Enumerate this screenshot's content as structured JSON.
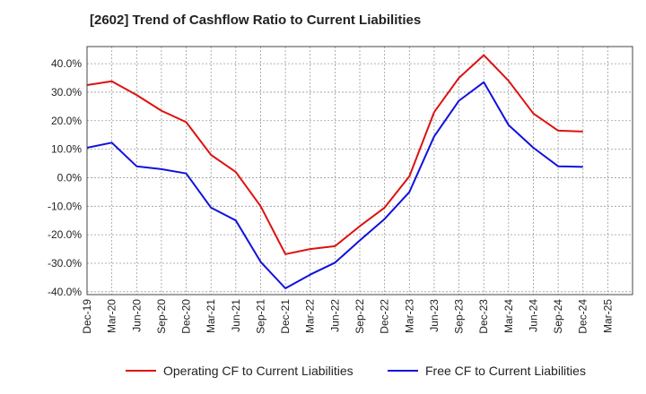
{
  "chart_data": {
    "type": "line",
    "title": "[2602]  Trend of Cashflow Ratio to Current Liabilities",
    "xlabel": "",
    "ylabel": "",
    "x": [
      "Dec-19",
      "Mar-20",
      "Jun-20",
      "Sep-20",
      "Dec-20",
      "Mar-21",
      "Jun-21",
      "Sep-21",
      "Dec-21",
      "Mar-22",
      "Jun-22",
      "Sep-22",
      "Dec-22",
      "Mar-23",
      "Jun-23",
      "Sep-23",
      "Dec-23",
      "Mar-24",
      "Jun-24",
      "Sep-24",
      "Dec-24",
      "Mar-25"
    ],
    "ylim": [
      -41,
      46
    ],
    "yticks": [
      40,
      30,
      20,
      10,
      0,
      -10,
      -20,
      -30,
      -40
    ],
    "ytick_labels": [
      "40.0%",
      "30.0%",
      "20.0%",
      "10.0%",
      "0.0%",
      "-10.0%",
      "-20.0%",
      "-30.0%",
      "-40.0%"
    ],
    "grid": true,
    "legend_position": "bottom",
    "series": [
      {
        "name": "Operating CF to Current Liabilities",
        "color": "#dd1111",
        "values": [
          32.5,
          33.8,
          29.0,
          23.5,
          19.5,
          8.0,
          2.0,
          -10.0,
          -26.8,
          -25.0,
          -24.0,
          -17.0,
          -10.5,
          0.5,
          23.0,
          35.0,
          43.0,
          34.0,
          22.5,
          16.5,
          16.2,
          null
        ]
      },
      {
        "name": "Free CF to Current Liabilities",
        "color": "#1111dd",
        "values": [
          10.5,
          12.3,
          4.0,
          3.0,
          1.5,
          -10.5,
          -15.0,
          -29.5,
          -38.8,
          -34.0,
          -29.8,
          -22.0,
          -14.5,
          -5.0,
          14.5,
          27.0,
          33.5,
          18.5,
          10.5,
          4.0,
          3.8,
          null
        ]
      }
    ]
  }
}
